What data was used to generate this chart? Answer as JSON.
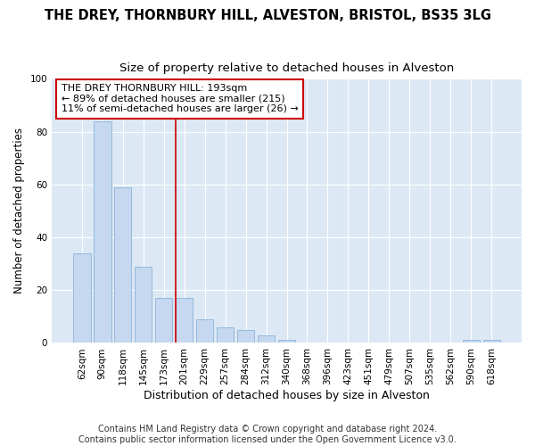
{
  "title": "THE DREY, THORNBURY HILL, ALVESTON, BRISTOL, BS35 3LG",
  "subtitle": "Size of property relative to detached houses in Alveston",
  "xlabel": "Distribution of detached houses by size in Alveston",
  "ylabel": "Number of detached properties",
  "categories": [
    "62sqm",
    "90sqm",
    "118sqm",
    "145sqm",
    "173sqm",
    "201sqm",
    "229sqm",
    "257sqm",
    "284sqm",
    "312sqm",
    "340sqm",
    "368sqm",
    "396sqm",
    "423sqm",
    "451sqm",
    "479sqm",
    "507sqm",
    "535sqm",
    "562sqm",
    "590sqm",
    "618sqm"
  ],
  "values": [
    34,
    84,
    59,
    29,
    17,
    17,
    9,
    6,
    5,
    3,
    1,
    0,
    0,
    0,
    0,
    0,
    0,
    0,
    0,
    1,
    1
  ],
  "bar_color": "#c5d8f0",
  "bar_edge_color": "#8ab4d8",
  "vline_x_index": 5.0,
  "vline_color": "#cc0000",
  "annotation_text": "THE DREY THORNBURY HILL: 193sqm\n← 89% of detached houses are smaller (215)\n11% of semi-detached houses are larger (26) →",
  "annotation_box_color": "#ffffff",
  "annotation_box_edge": "#cc0000",
  "background_color": "#ffffff",
  "plot_bg_color": "#dde8f5",
  "grid_color": "#ffffff",
  "footer_text": "Contains HM Land Registry data © Crown copyright and database right 2024.\nContains public sector information licensed under the Open Government Licence v3.0.",
  "ylim": [
    0,
    100
  ],
  "title_fontsize": 10.5,
  "subtitle_fontsize": 9.5,
  "xlabel_fontsize": 9,
  "ylabel_fontsize": 8.5,
  "tick_fontsize": 7.5,
  "annot_fontsize": 8,
  "footer_fontsize": 7
}
